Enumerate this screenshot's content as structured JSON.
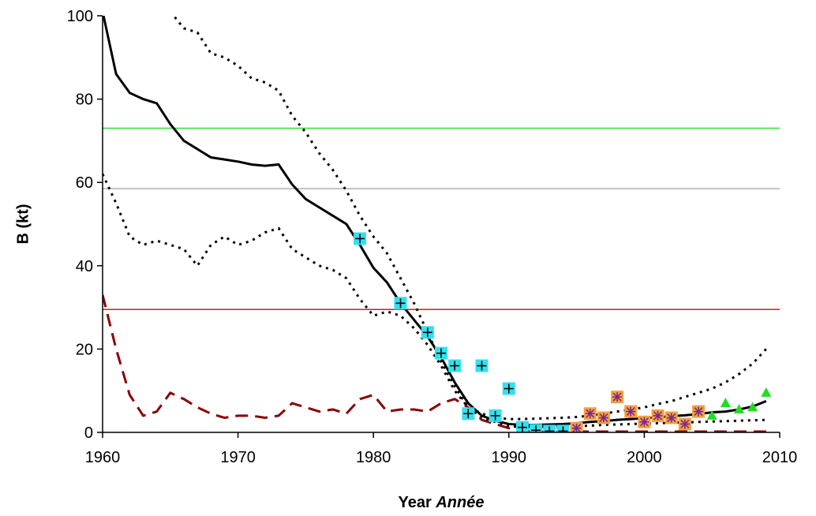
{
  "chart_data": {
    "type": "line",
    "y_label": "B (kt)",
    "x_label": "Year",
    "x_label_italic": "Année",
    "xlim": [
      1960,
      2010
    ],
    "xticks": [
      1960,
      1970,
      1980,
      1990,
      2000,
      2010
    ],
    "ylim": [
      0,
      100
    ],
    "yticks": [
      0,
      20,
      40,
      60,
      80,
      100
    ],
    "grid": false,
    "reference_lines": [
      {
        "value": 73,
        "color": "#33dd33"
      },
      {
        "value": 58.5,
        "color": "#b0b0b0"
      },
      {
        "value": 29.5,
        "color": "#ee1111"
      }
    ],
    "x": [
      1960,
      1961,
      1962,
      1963,
      1964,
      1965,
      1966,
      1967,
      1968,
      1969,
      1970,
      1971,
      1972,
      1973,
      1974,
      1975,
      1976,
      1977,
      1978,
      1979,
      1980,
      1981,
      1982,
      1983,
      1984,
      1985,
      1986,
      1987,
      1988,
      1989,
      1990,
      1991,
      1992,
      1993,
      1994,
      1995,
      1996,
      1997,
      1998,
      1999,
      2000,
      2001,
      2002,
      2003,
      2004,
      2005,
      2006,
      2007,
      2008,
      2009
    ],
    "series": [
      {
        "style": "solid",
        "color": "#000000",
        "values": [
          101,
          86,
          81.5,
          80,
          79,
          74,
          70,
          68,
          66,
          65.5,
          65,
          64.3,
          64,
          64.3,
          59.5,
          56,
          54,
          52,
          50,
          45,
          39.5,
          36,
          31,
          27,
          23,
          18,
          12,
          7,
          4,
          2.8,
          2,
          1.8,
          1.8,
          1.9,
          2,
          2.2,
          2.5,
          2.7,
          3,
          3.2,
          3.4,
          3.6,
          3.9,
          4.1,
          4.4,
          4.8,
          5,
          5.5,
          6.2,
          7.5
        ]
      },
      {
        "style": "dotted",
        "color": "#000000",
        "values": [
          null,
          null,
          null,
          null,
          null,
          101,
          97,
          96,
          91,
          90,
          88,
          85,
          84,
          82,
          76,
          72,
          67,
          63,
          58,
          52,
          47,
          43,
          37,
          31,
          24,
          17,
          11,
          6,
          4.5,
          3.5,
          3.2,
          3.2,
          3.3,
          3.4,
          3.5,
          3.7,
          4,
          4.5,
          5,
          5.5,
          6,
          6.8,
          7.5,
          8.5,
          9.5,
          10.5,
          12,
          14,
          16.5,
          20
        ]
      },
      {
        "style": "dotted",
        "color": "#000000",
        "values": [
          62,
          55,
          47,
          45,
          46,
          45,
          44,
          40,
          45,
          47,
          45,
          46,
          48,
          49,
          44,
          42,
          40,
          39,
          37,
          32,
          28,
          29,
          28,
          25,
          21,
          16,
          10,
          6,
          3.5,
          2.5,
          1.5,
          1.2,
          1.3,
          1.3,
          1.4,
          1.5,
          1.6,
          1.8,
          1.9,
          2,
          2.1,
          2.2,
          2.3,
          2.4,
          2.5,
          2.6,
          2.7,
          2.8,
          2.9,
          3
        ]
      },
      {
        "style": "dashed",
        "color": "#8b0000",
        "values": [
          33,
          20,
          9,
          4,
          5,
          9.5,
          8,
          6,
          4.5,
          3.5,
          4,
          4,
          3.5,
          4,
          7,
          6,
          5,
          5.5,
          4.5,
          8,
          9,
          5,
          5.5,
          5.5,
          5,
          7,
          8,
          6,
          3,
          2,
          1,
          0.5,
          0.2,
          0.2,
          0.2,
          0.2,
          0.2,
          0.2,
          0.2,
          0.2,
          0.2,
          0.2,
          0.2,
          0.2,
          0.2,
          0.2,
          0.2,
          0.2,
          0.2,
          0.2
        ]
      }
    ],
    "points": [
      {
        "marker": "square-plus",
        "color": "#33e0f0",
        "x": [
          1979,
          1982,
          1984,
          1985,
          1986,
          1987,
          1988,
          1989,
          1990,
          1991,
          1992,
          1993,
          1994
        ],
        "values": [
          46.5,
          31,
          24,
          19,
          16,
          4.5,
          16,
          4,
          10.5,
          1.2,
          0.5,
          0.3,
          0.3
        ]
      },
      {
        "marker": "square-star",
        "color": "#f5a040",
        "x": [
          1995,
          1996,
          1997,
          1998,
          1999,
          2000,
          2001,
          2002,
          2003,
          2004
        ],
        "values": [
          1,
          4.5,
          3.5,
          8.5,
          5,
          2.5,
          4,
          3.5,
          2,
          5
        ]
      },
      {
        "marker": "triangle",
        "color": "#22dd22",
        "x": [
          2005,
          2006,
          2007,
          2008,
          2009
        ],
        "values": [
          4,
          7,
          5.5,
          6,
          9.5
        ]
      }
    ]
  }
}
